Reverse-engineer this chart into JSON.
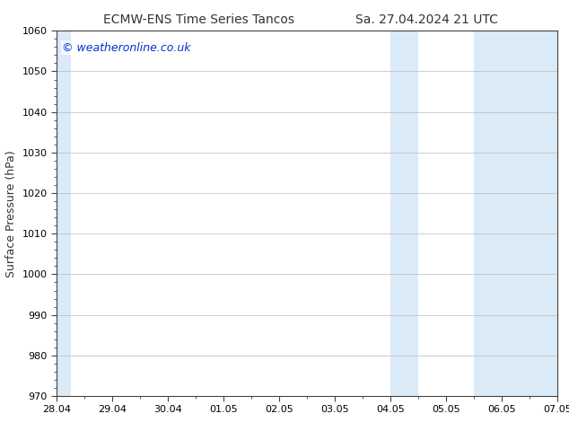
{
  "title": "ECMW-ENS Time Series Tancos        Sa. 27.04.2024 21 UTC",
  "title_left": "ECMW-ENS Time Series Tancos",
  "title_right": "Sa. 27.04.2024 21 UTC",
  "ylabel": "Surface Pressure (hPa)",
  "ylim": [
    970,
    1060
  ],
  "yticks": [
    970,
    980,
    990,
    1000,
    1010,
    1020,
    1030,
    1040,
    1050,
    1060
  ],
  "xtick_labels": [
    "28.04",
    "29.04",
    "30.04",
    "01.05",
    "02.05",
    "03.05",
    "04.05",
    "05.05",
    "06.05",
    "07.05"
  ],
  "xtick_positions": [
    0,
    1,
    2,
    3,
    4,
    5,
    6,
    7,
    8,
    9
  ],
  "xlim": [
    0,
    9
  ],
  "shaded_bands": [
    {
      "x_start": 0.0,
      "x_end": 0.25
    },
    {
      "x_start": 6.0,
      "x_end": 6.5
    },
    {
      "x_start": 7.5,
      "x_end": 9.0
    }
  ],
  "shaded_color": "#dbeaf7",
  "background_color": "#ffffff",
  "grid_color": "#bbbbbb",
  "axis_color": "#333333",
  "title_fontsize": 10,
  "label_fontsize": 9,
  "tick_fontsize": 8,
  "watermark_text": "© weatheronline.co.uk",
  "watermark_color": "#0033cc",
  "watermark_fontsize": 9
}
